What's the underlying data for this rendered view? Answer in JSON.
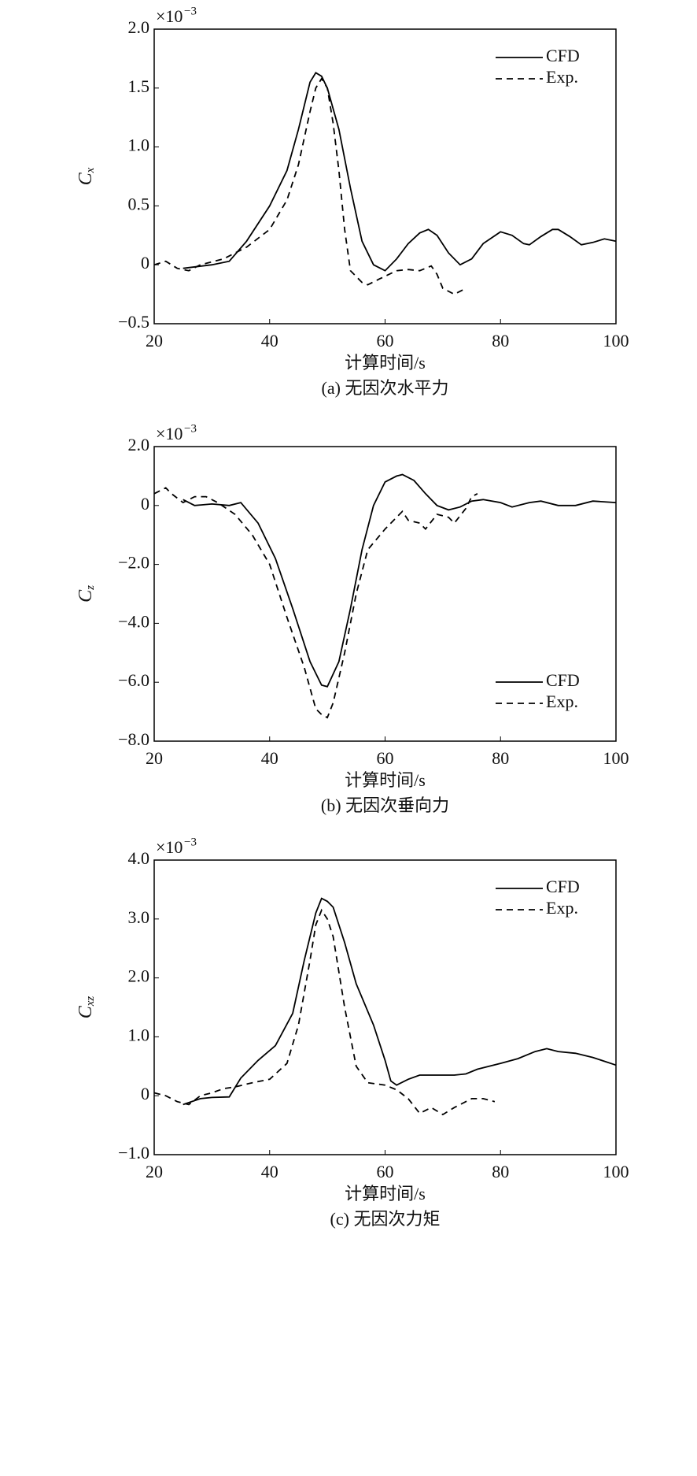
{
  "chart_data": [
    {
      "type": "line",
      "multiplier": "×10",
      "exponent": "−3",
      "ylabel": "C",
      "ylabel_sub": "x",
      "xlabel": "计算时间/s",
      "caption": "(a) 无因次水平力",
      "xlim": [
        20,
        100
      ],
      "ylim": [
        -0.5,
        2.0
      ],
      "xticks": [
        20,
        40,
        60,
        80,
        100
      ],
      "yticks": [
        {
          "value": -0.5,
          "label": "−0.5"
        },
        0,
        {
          "value": 0.5,
          "label": "0.5"
        },
        {
          "value": 1.0,
          "label": "1.0"
        },
        {
          "value": 1.5,
          "label": "1.5"
        },
        {
          "value": 2.0,
          "label": "2.0"
        }
      ],
      "legend": "upper right",
      "series": [
        {
          "name": "CFD",
          "color": "#000000",
          "style": "solid",
          "x": [
            25,
            30,
            33,
            36,
            40,
            43,
            45,
            47,
            48,
            49,
            50,
            52,
            54,
            56,
            58,
            60,
            62,
            64,
            66,
            67.5,
            69,
            71,
            73,
            75,
            77,
            80,
            82,
            84,
            85,
            87,
            89,
            90,
            92,
            94,
            96,
            98,
            100
          ],
          "values": [
            -0.03,
            0.0,
            0.03,
            0.2,
            0.5,
            0.8,
            1.15,
            1.55,
            1.63,
            1.6,
            1.5,
            1.15,
            0.65,
            0.2,
            0.0,
            -0.05,
            0.05,
            0.18,
            0.27,
            0.3,
            0.25,
            0.1,
            0.0,
            0.05,
            0.18,
            0.28,
            0.25,
            0.18,
            0.17,
            0.24,
            0.3,
            0.3,
            0.24,
            0.17,
            0.19,
            0.22,
            0.2
          ]
        },
        {
          "name": "Exp.",
          "color": "#000000",
          "style": "dashed",
          "x": [
            20,
            22,
            24,
            26,
            28,
            32,
            36,
            40,
            43,
            45,
            47,
            48,
            49,
            50,
            51,
            52,
            53,
            54,
            56,
            57,
            59,
            62,
            64,
            66,
            68,
            69,
            70,
            72,
            74
          ],
          "values": [
            0.0,
            0.03,
            -0.03,
            -0.05,
            0.0,
            0.05,
            0.15,
            0.3,
            0.55,
            0.85,
            1.3,
            1.5,
            1.58,
            1.5,
            1.2,
            0.8,
            0.3,
            -0.05,
            -0.15,
            -0.17,
            -0.12,
            -0.05,
            -0.04,
            -0.05,
            -0.01,
            -0.08,
            -0.2,
            -0.25,
            -0.2
          ]
        }
      ]
    },
    {
      "type": "line",
      "multiplier": "×10",
      "exponent": "−3",
      "ylabel": "C",
      "ylabel_sub": "z",
      "xlabel": "计算时间/s",
      "caption": "(b) 无因次垂向力",
      "xlim": [
        20,
        100
      ],
      "ylim": [
        -8.0,
        2.0
      ],
      "xticks": [
        20,
        40,
        60,
        80,
        100
      ],
      "yticks": [
        {
          "value": -8.0,
          "label": "−8.0"
        },
        {
          "value": -6.0,
          "label": "−6.0"
        },
        {
          "value": -4.0,
          "label": "−4.0"
        },
        {
          "value": -2.0,
          "label": "−2.0"
        },
        0,
        {
          "value": 2.0,
          "label": "2.0"
        }
      ],
      "legend": "lower right",
      "series": [
        {
          "name": "CFD",
          "color": "#000000",
          "style": "solid",
          "x": [
            25,
            27,
            30,
            33,
            35,
            38,
            41,
            44,
            47,
            49,
            50,
            52,
            54,
            56,
            58,
            60,
            62,
            63,
            65,
            67,
            69,
            71,
            73,
            75,
            77,
            80,
            82,
            85,
            87,
            90,
            93,
            96,
            100
          ],
          "values": [
            0.2,
            0.0,
            0.05,
            0.0,
            0.1,
            -0.6,
            -1.8,
            -3.5,
            -5.3,
            -6.1,
            -6.15,
            -5.3,
            -3.5,
            -1.5,
            0.0,
            0.8,
            1.0,
            1.05,
            0.85,
            0.4,
            0.0,
            -0.15,
            -0.05,
            0.15,
            0.2,
            0.1,
            -0.05,
            0.1,
            0.15,
            0.0,
            0.0,
            0.15,
            0.1
          ]
        },
        {
          "name": "Exp.",
          "color": "#000000",
          "style": "dashed",
          "x": [
            20,
            22,
            23,
            25,
            27,
            29,
            31,
            34,
            37,
            40,
            43,
            46,
            48,
            49,
            50,
            51,
            53,
            55,
            57,
            60,
            63,
            64,
            66,
            67,
            69,
            71,
            72,
            74,
            75,
            76
          ],
          "values": [
            0.4,
            0.6,
            0.4,
            0.1,
            0.3,
            0.3,
            0.1,
            -0.3,
            -1.0,
            -2.0,
            -3.8,
            -5.5,
            -6.9,
            -7.1,
            -7.2,
            -6.7,
            -5.0,
            -3.0,
            -1.5,
            -0.8,
            -0.2,
            -0.5,
            -0.6,
            -0.8,
            -0.3,
            -0.4,
            -0.6,
            -0.1,
            0.3,
            0.4
          ]
        }
      ]
    },
    {
      "type": "line",
      "multiplier": "×10",
      "exponent": "−3",
      "ylabel": "C",
      "ylabel_sub": "xz",
      "xlabel": "计算时间/s",
      "caption": "(c) 无因次力矩",
      "xlim": [
        20,
        100
      ],
      "ylim": [
        -1.0,
        4.0
      ],
      "xticks": [
        20,
        40,
        60,
        80,
        100
      ],
      "yticks": [
        {
          "value": -1.0,
          "label": "−1.0"
        },
        0,
        {
          "value": 1.0,
          "label": "1.0"
        },
        {
          "value": 2.0,
          "label": "2.0"
        },
        {
          "value": 3.0,
          "label": "3.0"
        },
        {
          "value": 4.0,
          "label": "4.0"
        }
      ],
      "legend": "upper right",
      "series": [
        {
          "name": "CFD",
          "color": "#000000",
          "style": "solid",
          "x": [
            25,
            28,
            30,
            33,
            35,
            38,
            41,
            44,
            46,
            48,
            49,
            50,
            51,
            53,
            55,
            58,
            60,
            61,
            62,
            64,
            66,
            68,
            72,
            74,
            76,
            80,
            83,
            86,
            88,
            90,
            93,
            96,
            100
          ],
          "values": [
            -0.15,
            -0.05,
            -0.03,
            -0.02,
            0.3,
            0.6,
            0.85,
            1.4,
            2.3,
            3.1,
            3.35,
            3.3,
            3.2,
            2.6,
            1.9,
            1.2,
            0.6,
            0.25,
            0.18,
            0.28,
            0.35,
            0.35,
            0.35,
            0.37,
            0.45,
            0.55,
            0.63,
            0.75,
            0.8,
            0.75,
            0.72,
            0.65,
            0.52
          ]
        },
        {
          "name": "Exp.",
          "color": "#000000",
          "style": "dashed",
          "x": [
            20,
            22,
            24,
            26,
            28,
            30,
            32,
            34,
            37,
            40,
            43,
            45,
            47,
            48,
            49,
            50,
            51,
            53,
            55,
            57,
            60,
            62,
            64,
            66,
            68,
            70,
            72,
            75,
            77,
            79
          ],
          "values": [
            0.05,
            0.0,
            -0.1,
            -0.15,
            0.0,
            0.05,
            0.12,
            0.15,
            0.22,
            0.28,
            0.55,
            1.2,
            2.3,
            2.9,
            3.15,
            3.0,
            2.7,
            1.5,
            0.5,
            0.22,
            0.18,
            0.1,
            -0.05,
            -0.3,
            -0.2,
            -0.32,
            -0.2,
            -0.05,
            -0.05,
            -0.1
          ]
        }
      ]
    }
  ]
}
